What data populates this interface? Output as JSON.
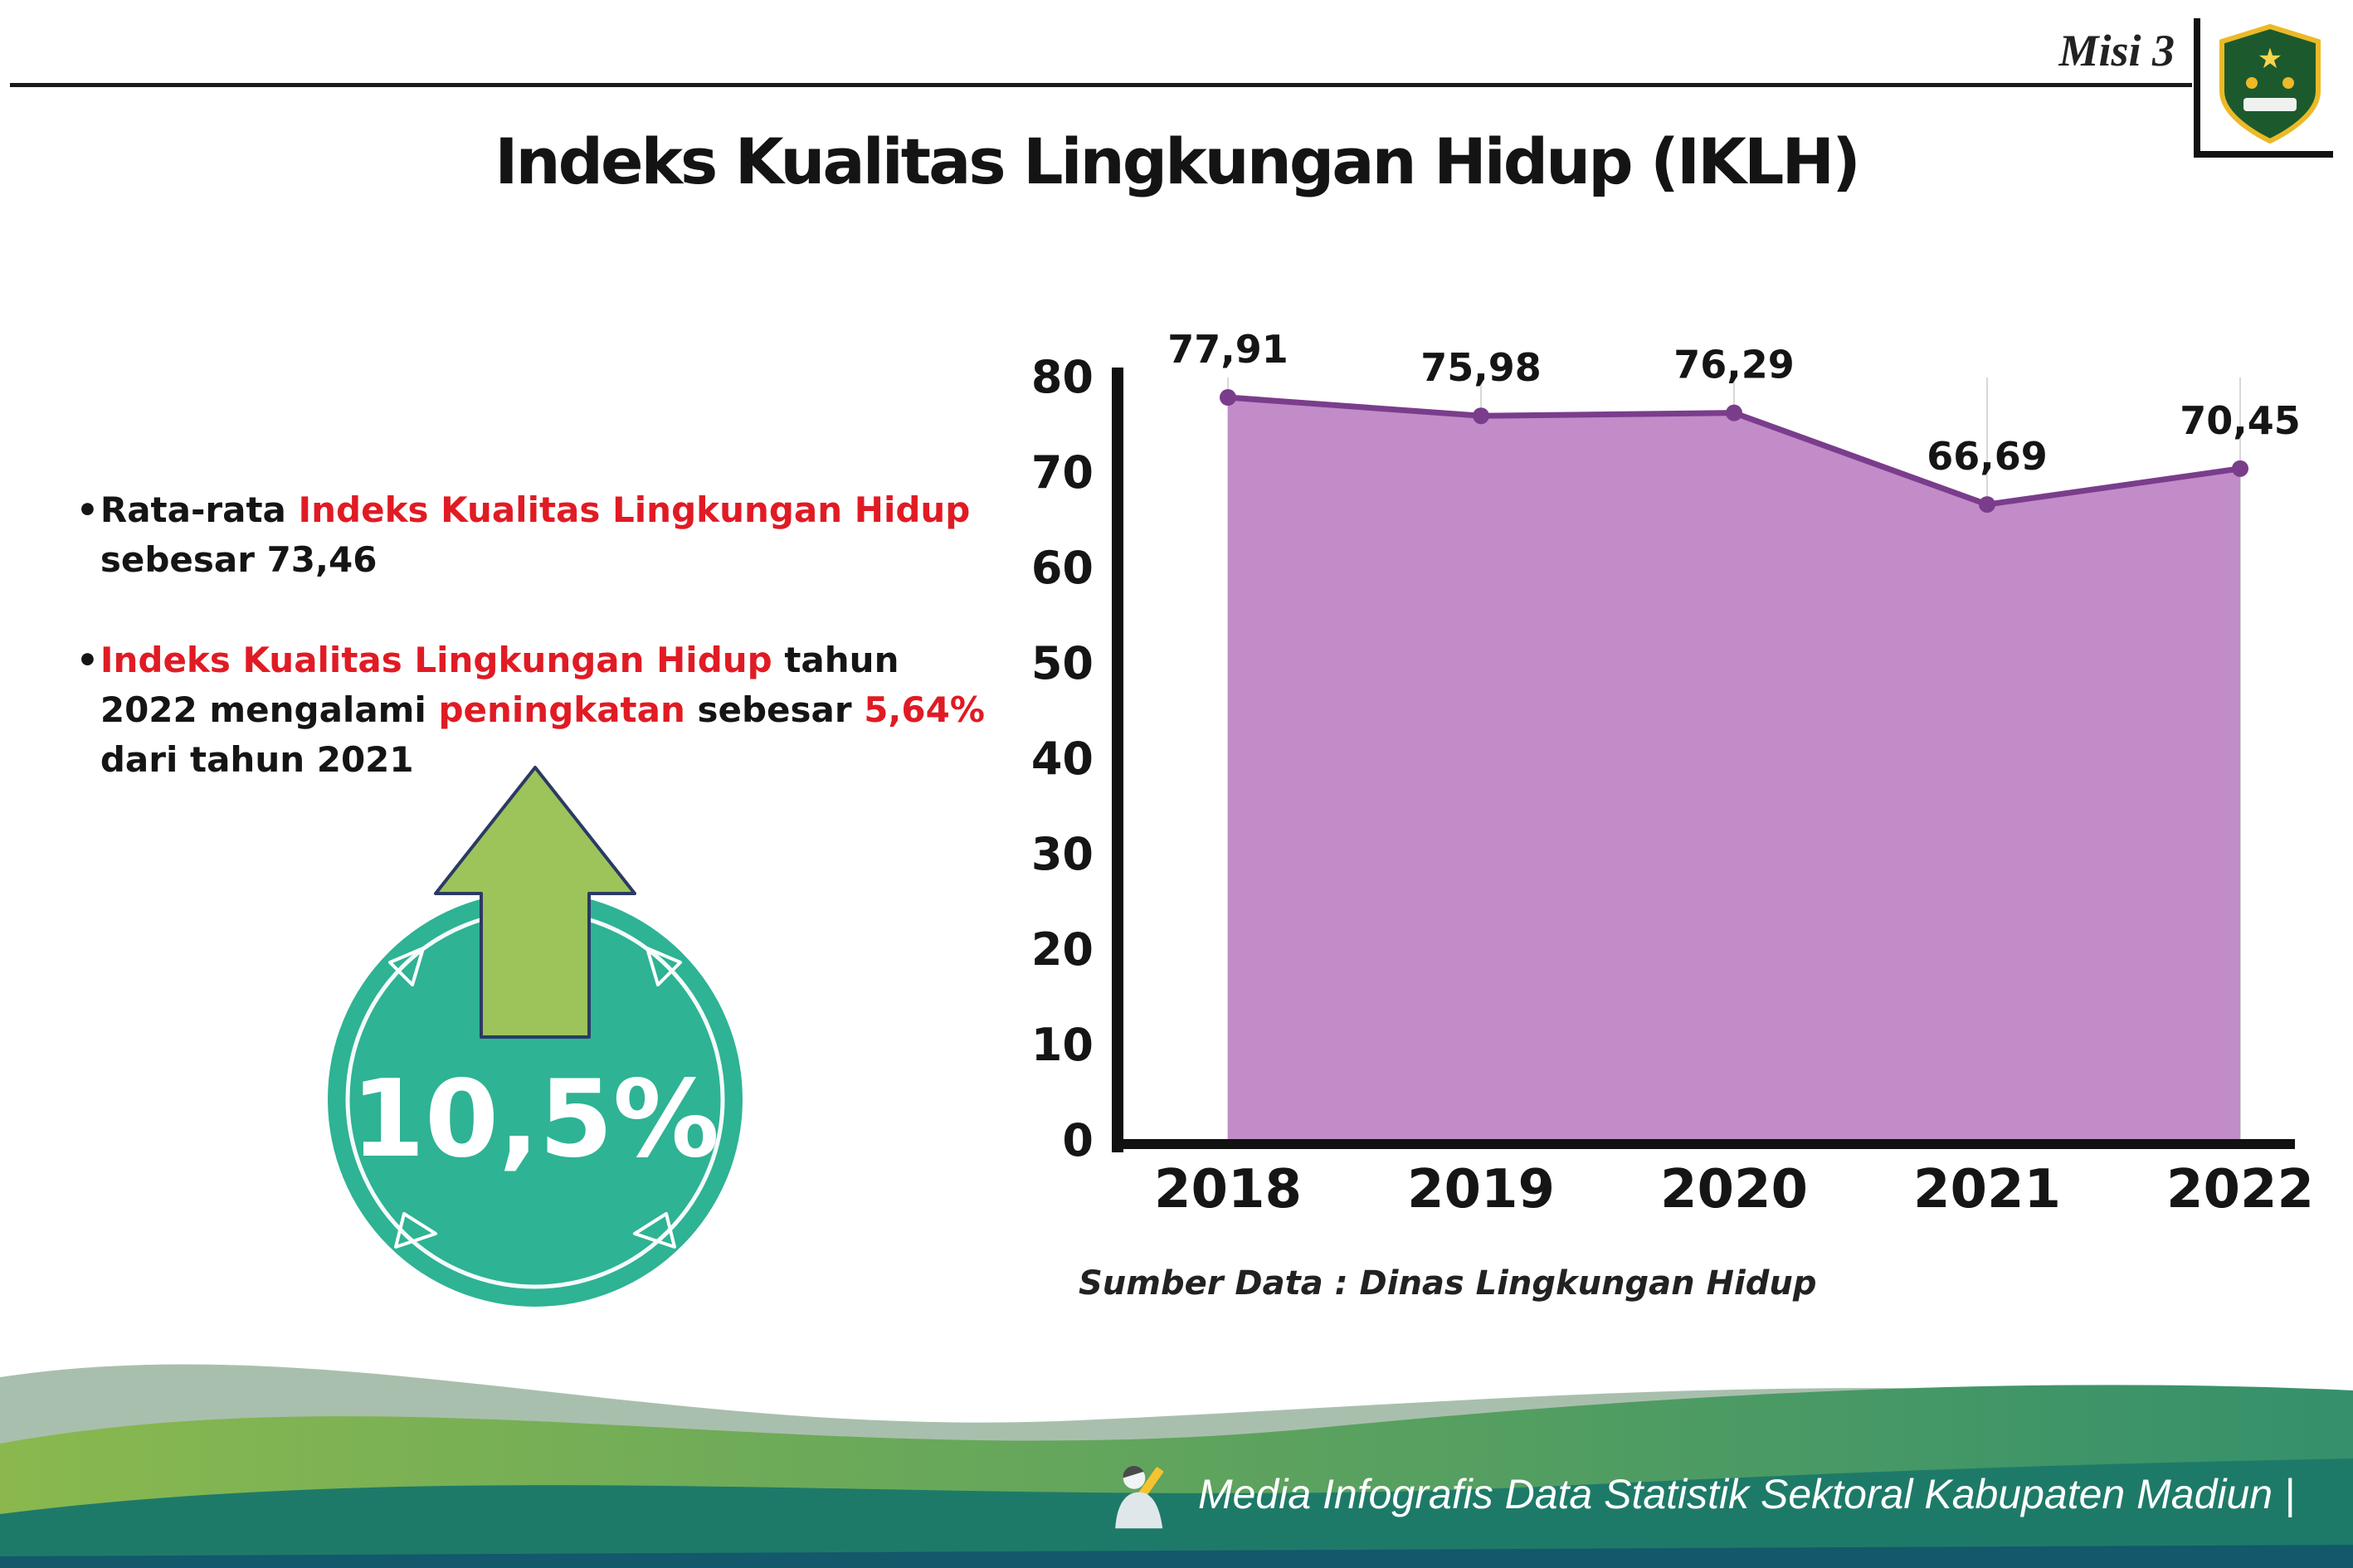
{
  "header": {
    "misi_label": "Misi 3",
    "title": "Indeks Kualitas Lingkungan Hidup (IKLH)"
  },
  "bullets": {
    "b1": {
      "t1": "Rata-rata ",
      "t2": "Indeks Kualitas Lingkungan Hidup",
      "t3": " sebesar 73,46"
    },
    "b2": {
      "t1": "Indeks Kualitas Lingkungan Hidup",
      "t2": " tahun 2022 mengalami ",
      "t3": "peningkatan",
      "t4": " sebesar ",
      "t5": "5,64%",
      "t6": " dari tahun 2021"
    }
  },
  "badge": {
    "value": "10,5%"
  },
  "chart_data": {
    "type": "area",
    "categories": [
      "2018",
      "2019",
      "2020",
      "2021",
      "2022"
    ],
    "values": [
      77.91,
      75.98,
      76.29,
      66.69,
      70.45
    ],
    "labels": [
      "77,91",
      "75,98",
      "76,29",
      "66,69",
      "70,45"
    ],
    "title": "Indeks Kualitas Lingkungan Hidup (IKLH)",
    "xlabel": "",
    "ylabel": "",
    "ylim": [
      0,
      80
    ],
    "ytick_step": 10,
    "grid": "vertical",
    "legend": "none",
    "source": "Sumber Data : Dinas Lingkungan Hidup",
    "line_color": "#7a3d8c",
    "fill_color": "#c18cc7"
  },
  "footer": {
    "credit": "Media Infografis Data Statistik Sektoral Kabupaten Madiun |"
  },
  "colors": {
    "accent_red": "#e01b24",
    "badge_teal": "#2eb394",
    "arrow_green": "#9cc45b",
    "line_purple": "#7a3d8c",
    "fill_purple": "#c18cc7",
    "footer_teal": "#1e7a68",
    "footer_green": "#6fae4c",
    "footer_sage": "#a9bfad"
  }
}
